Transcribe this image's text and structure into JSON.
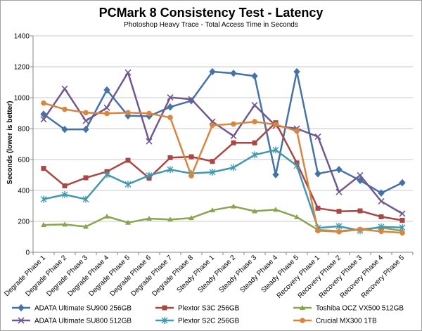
{
  "chart_data": {
    "type": "line",
    "title": "PCMark 8 Consistency Test - Latency",
    "subtitle": "Photoshop Heavy Trace - Total Access Time in Seconds",
    "xlabel": "",
    "ylabel": "Seconds (lower is better)",
    "ylim": [
      0,
      1400
    ],
    "yticks": [
      0,
      200,
      400,
      600,
      800,
      1000,
      1200,
      1400
    ],
    "grid": true,
    "legend_position": "bottom",
    "categories": [
      "Degrade Phase 1",
      "Degrade Phase 2",
      "Degrade Phase 3",
      "Degrade Phase 4",
      "Degrade Phase 5",
      "Degrade Phase 6",
      "Degrade Phase 7",
      "Degrade Phase 8",
      "Steady Phase 1",
      "Steady Phase 2",
      "Steady Phase 3",
      "Steady Phase 4",
      "Steady Phase 5",
      "Recovery Phase 1",
      "Recovery Phase 2",
      "Recovery Phase 3",
      "Recovery Phase 4",
      "Recovery Phase 5"
    ],
    "series": [
      {
        "name": "ADATA Ultimate SU900 256GB",
        "color": "#4572a7",
        "marker": "diamond",
        "values": [
          893,
          795,
          795,
          1050,
          883,
          880,
          940,
          980,
          1168,
          1158,
          1140,
          502,
          1168,
          508,
          535,
          465,
          383,
          450
        ]
      },
      {
        "name": "Plextor S3C 256GB",
        "color": "#aa4643",
        "marker": "square",
        "values": [
          543,
          430,
          482,
          522,
          595,
          480,
          612,
          618,
          588,
          708,
          708,
          838,
          578,
          285,
          265,
          268,
          230,
          207
        ]
      },
      {
        "name": "Toshiba OCZ VX500 512GB",
        "color": "#89a54e",
        "marker": "triangle",
        "values": [
          177,
          180,
          166,
          232,
          192,
          218,
          212,
          222,
          272,
          297,
          266,
          276,
          228,
          145,
          137,
          148,
          160,
          138
        ]
      },
      {
        "name": "ADATA Ultimate SU800 512GB",
        "color": "#71588f",
        "marker": "x",
        "values": [
          860,
          1058,
          850,
          935,
          1163,
          718,
          1002,
          990,
          845,
          752,
          952,
          818,
          800,
          748,
          390,
          498,
          330,
          250
        ]
      },
      {
        "name": "Plextor S2C 256GB",
        "color": "#4198af",
        "marker": "star",
        "values": [
          343,
          373,
          343,
          503,
          440,
          497,
          535,
          510,
          518,
          548,
          630,
          662,
          560,
          158,
          168,
          140,
          165,
          160
        ]
      },
      {
        "name": "Crucial MX300 1TB",
        "color": "#db843d",
        "marker": "circle",
        "values": [
          965,
          925,
          903,
          898,
          903,
          898,
          872,
          495,
          822,
          830,
          845,
          826,
          785,
          140,
          133,
          148,
          135,
          126
        ]
      }
    ]
  }
}
